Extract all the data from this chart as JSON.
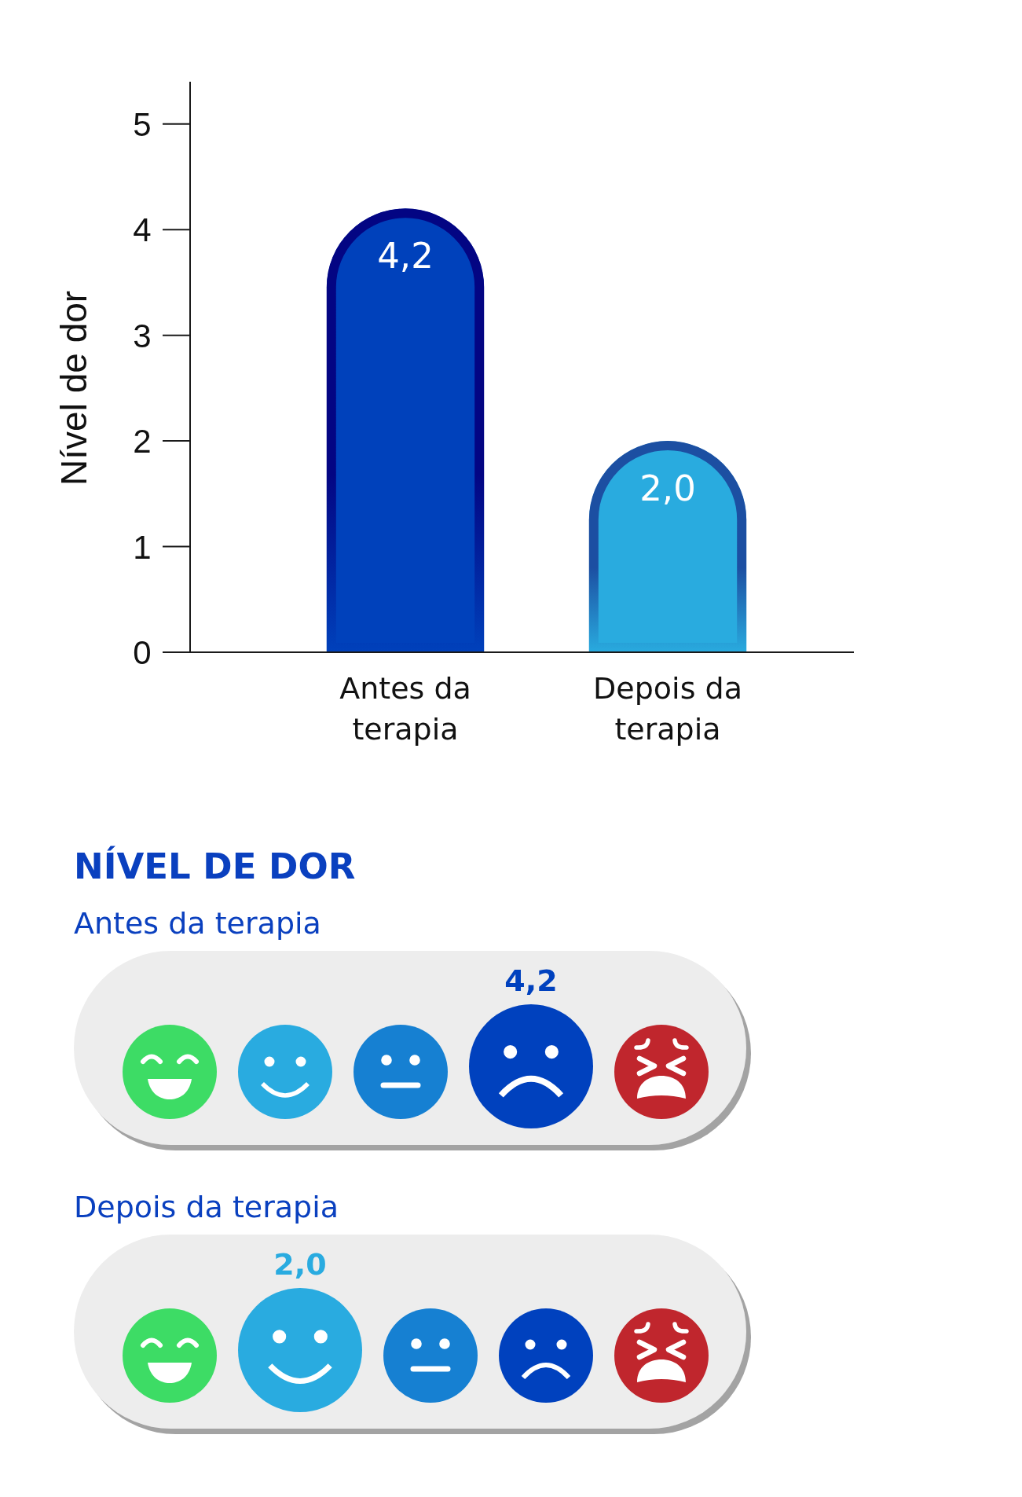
{
  "chart_data": [
    {
      "type": "bar",
      "ylabel": "Nível de dor",
      "categories": [
        "Antes da terapia",
        "Depois da terapia"
      ],
      "values": [
        4.2,
        2.0
      ],
      "value_labels": [
        "4,2",
        "2,0"
      ],
      "colors": [
        "#0041bb",
        "#29abdf"
      ],
      "ylim": [
        0,
        5.4
      ],
      "yticks": [
        0,
        1,
        2,
        3,
        4,
        5
      ]
    },
    {
      "type": "other",
      "title": "NÍVEL DE DOR",
      "categories": [
        "Antes da terapia",
        "Depois da terapia"
      ],
      "values": [
        4.2,
        2.0
      ],
      "value_labels": [
        "4,2",
        "2,0"
      ]
    }
  ]
}
